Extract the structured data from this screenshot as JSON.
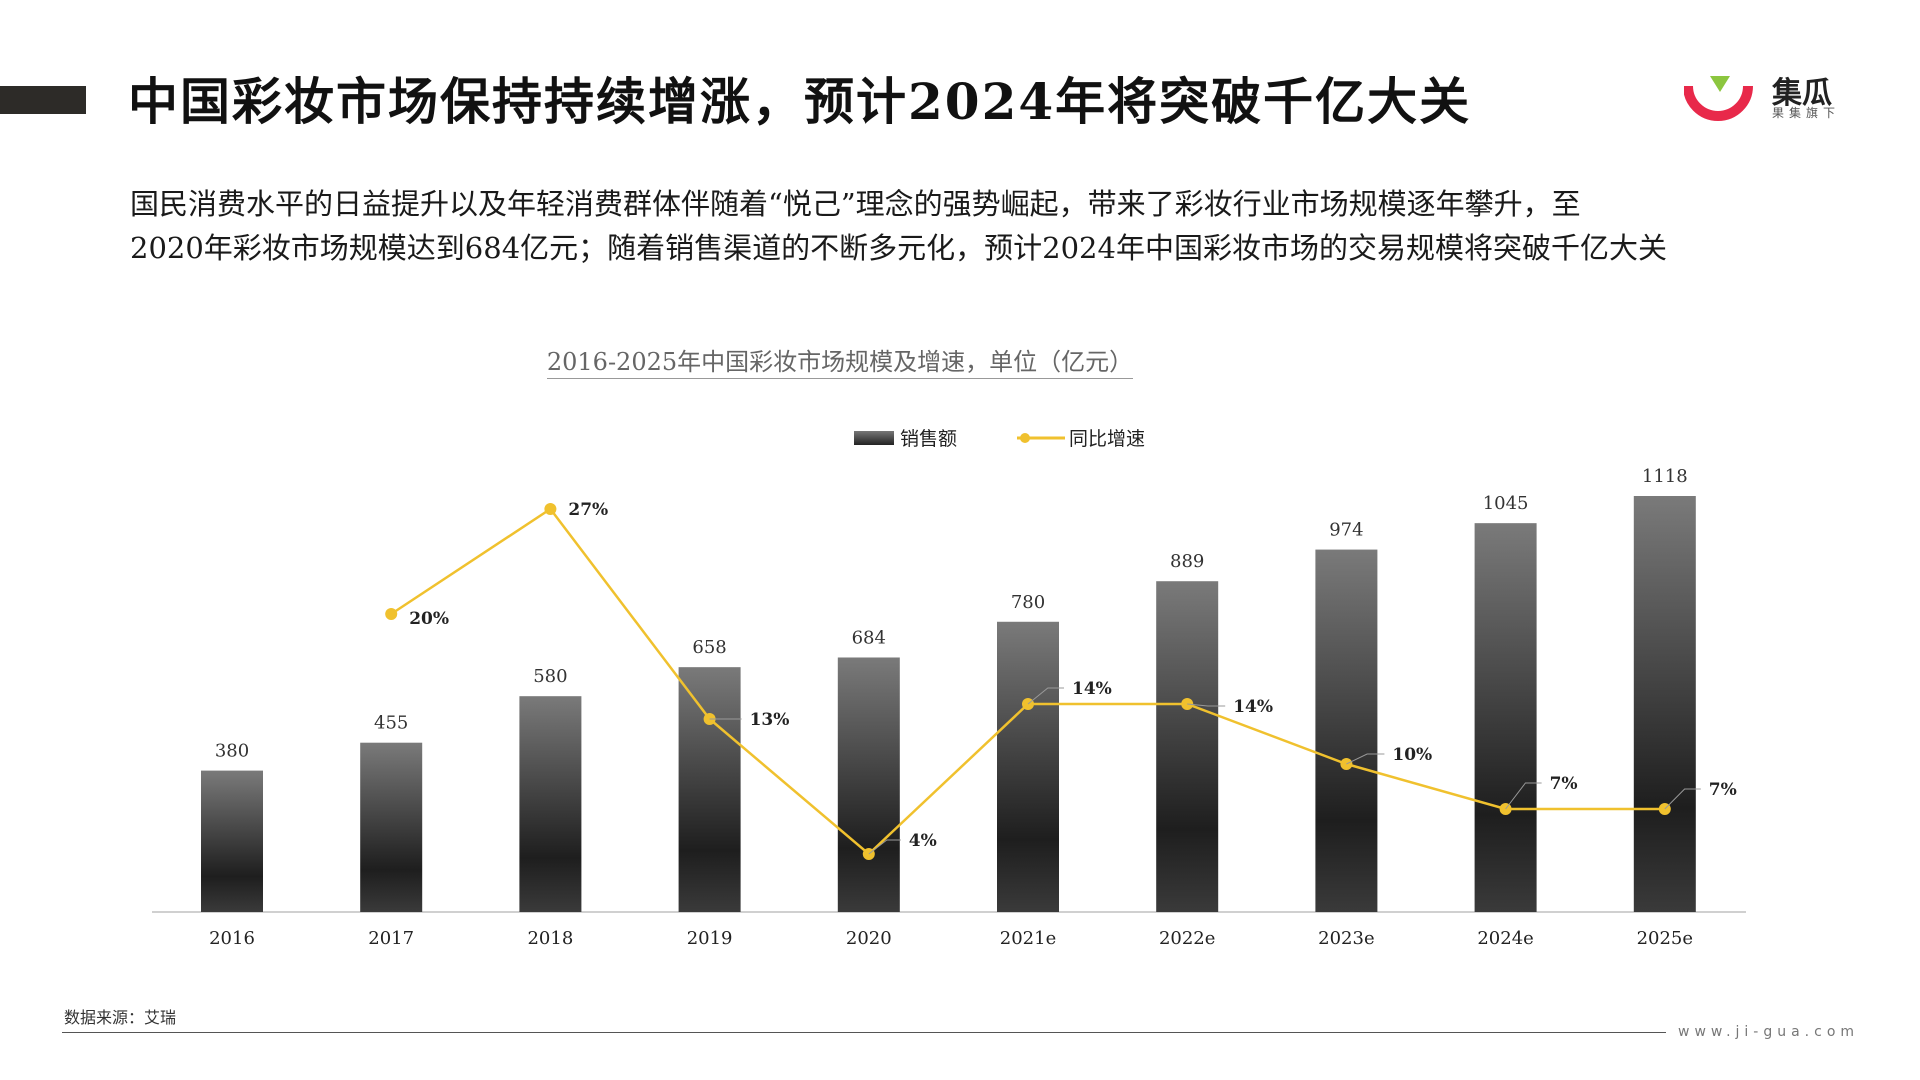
{
  "header": {
    "title": "中国彩妆市场保持持续增涨，预计2024年将突破千亿大关"
  },
  "logo": {
    "name": "集瓜",
    "subtitle": "果集旗下",
    "icon": "jigua-logo-icon"
  },
  "description": {
    "line1": "国民消费水平的日益提升以及年轻消费群体伴随着“悦己”理念的强势崛起，带来了彩妆行业市场规模逐年攀升，至",
    "line2": "2020年彩妆市场规模达到684亿元；随着销售渠道的不断多元化，预计2024年中国彩妆市场的交易规模将突破千亿大关"
  },
  "chart_data": {
    "type": "bar",
    "title": "2016-2025年中国彩妆市场规模及增速，单位（亿元）",
    "categories": [
      "2016",
      "2017",
      "2018",
      "2019",
      "2020",
      "2021e",
      "2022e",
      "2023e",
      "2024e",
      "2025e"
    ],
    "series": [
      {
        "name": "销售额",
        "type": "bar",
        "values": [
          380,
          455,
          580,
          658,
          684,
          780,
          889,
          974,
          1045,
          1118
        ]
      },
      {
        "name": "同比增速",
        "type": "line",
        "values": [
          null,
          20,
          27,
          13,
          4,
          14,
          14,
          10,
          7,
          7
        ],
        "labels": [
          "",
          "20%",
          "27%",
          "13%",
          "4%",
          "14%",
          "14%",
          "10%",
          "7%",
          "7%"
        ]
      }
    ],
    "legend_position": "top-center",
    "grid": false
  },
  "colors": {
    "line": "#f0c12e",
    "bar_top": "#7a7a7a",
    "bar_bottom": "#1e1e1e",
    "title_bar": "#2d2b28",
    "logo_red": "#e8294a",
    "logo_green": "#8cc63f"
  },
  "footer": {
    "source": "数据来源：艾瑞",
    "website": "www.ji-gua.com"
  }
}
